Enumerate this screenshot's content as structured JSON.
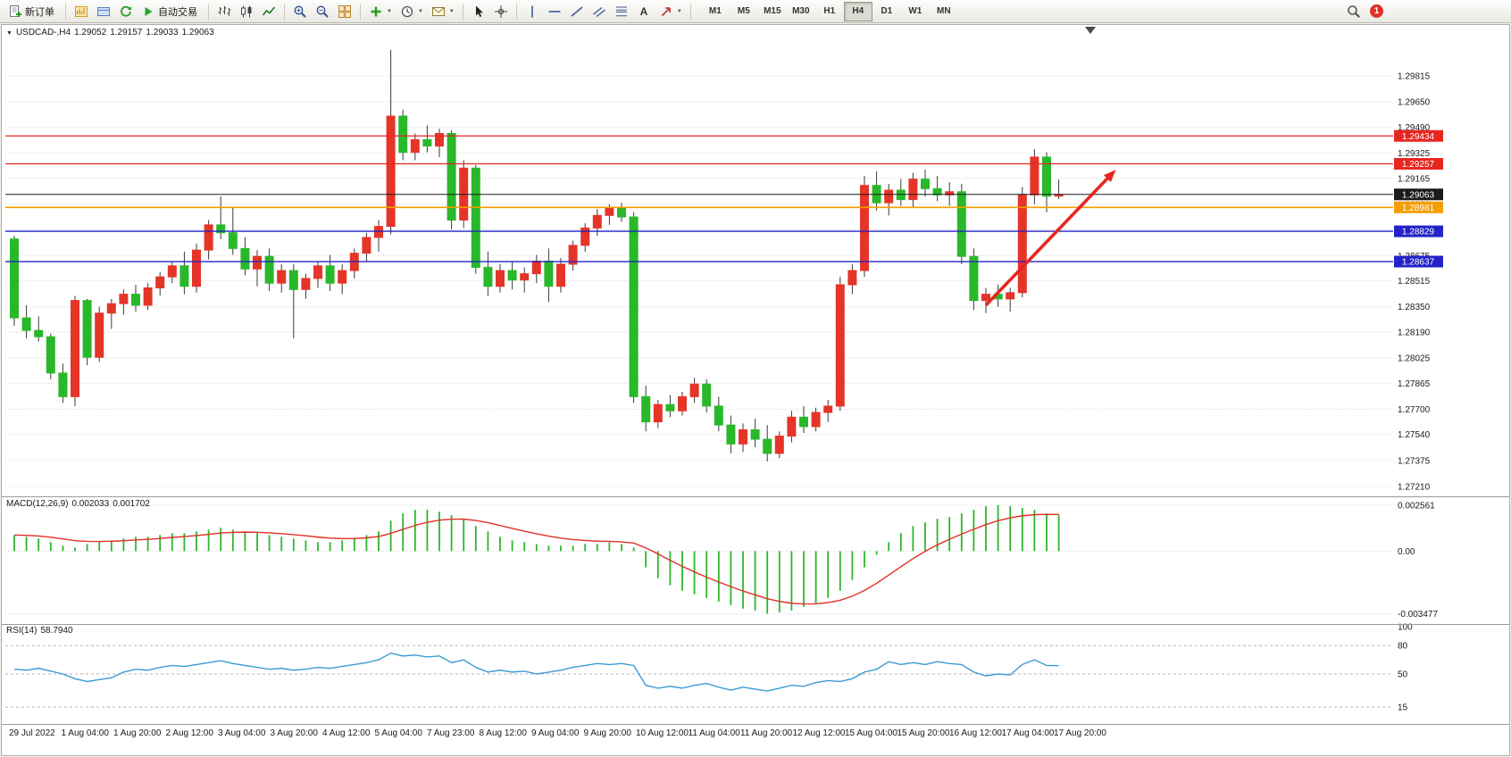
{
  "toolbar": {
    "new_order_label": "新订单",
    "auto_trading_label": "自动交易",
    "timeframes": [
      "M1",
      "M5",
      "M15",
      "M30",
      "H1",
      "H4",
      "D1",
      "W1",
      "MN"
    ],
    "active_timeframe": "H4",
    "notification_count": "1",
    "icons": [
      "new-order-icon",
      "new-chart-icon",
      "profiles-icon",
      "refresh-icon",
      "auto-trading-icon",
      "bar-chart-icon",
      "candlestick-icon",
      "line-chart-icon",
      "zoom-in-icon",
      "zoom-out-icon",
      "tile-windows-icon",
      "indicators-add-icon",
      "periods-clock-icon",
      "templates-mail-icon",
      "cursor-icon",
      "crosshair-icon",
      "vertical-line-icon",
      "horizontal-line-icon",
      "trendline-icon",
      "channel-icon",
      "fibonacci-icon",
      "text-icon",
      "arrows-icon",
      "search-icon"
    ]
  },
  "chart_header": {
    "symbol_period": "USDCAD-,H4",
    "open": "1.29052",
    "high": "1.29157",
    "low": "1.29033",
    "close": "1.29063"
  },
  "chart_data": {
    "type": "candlestick",
    "symbol": "USDCAD",
    "period": "H4",
    "price_axis_labels": [
      "1.29815",
      "1.29650",
      "1.29490",
      "1.29325",
      "1.29165",
      "1.29000",
      "1.28840",
      "1.28675",
      "1.28515",
      "1.28350",
      "1.28190",
      "1.28025",
      "1.27865",
      "1.27700",
      "1.27540",
      "1.27375",
      "1.27210"
    ],
    "time_labels": [
      "29 Jul 2022",
      "1 Aug 04:00",
      "1 Aug 20:00",
      "2 Aug 12:00",
      "3 Aug 04:00",
      "3 Aug 20:00",
      "4 Aug 12:00",
      "5 Aug 04:00",
      "7 Aug 23:00",
      "8 Aug 12:00",
      "9 Aug 04:00",
      "9 Aug 20:00",
      "10 Aug 12:00",
      "11 Aug 04:00",
      "11 Aug 20:00",
      "12 Aug 12:00",
      "15 Aug 04:00",
      "15 Aug 20:00",
      "16 Aug 12:00",
      "17 Aug 04:00",
      "17 Aug 20:00"
    ],
    "ohlc": [
      [
        1.2878,
        1.288,
        1.2823,
        1.2828
      ],
      [
        1.2828,
        1.2836,
        1.2815,
        1.282
      ],
      [
        1.282,
        1.2829,
        1.2813,
        1.2816
      ],
      [
        1.2816,
        1.2818,
        1.2789,
        1.2793
      ],
      [
        1.2793,
        1.2799,
        1.2774,
        1.2778
      ],
      [
        1.2778,
        1.2842,
        1.2772,
        1.2839
      ],
      [
        1.2839,
        1.284,
        1.2798,
        1.2803
      ],
      [
        1.2803,
        1.2835,
        1.28,
        1.2831
      ],
      [
        1.2831,
        1.284,
        1.2821,
        1.2837
      ],
      [
        1.2837,
        1.2846,
        1.283,
        1.2843
      ],
      [
        1.2843,
        1.2849,
        1.2832,
        1.2836
      ],
      [
        1.2836,
        1.285,
        1.2833,
        1.2847
      ],
      [
        1.2847,
        1.2857,
        1.2842,
        1.2854
      ],
      [
        1.2854,
        1.2864,
        1.285,
        1.2861
      ],
      [
        1.2861,
        1.287,
        1.2843,
        1.2848
      ],
      [
        1.2848,
        1.2875,
        1.2844,
        1.2871
      ],
      [
        1.2871,
        1.289,
        1.2865,
        1.2887
      ],
      [
        1.2887,
        1.2905,
        1.2878,
        1.2882
      ],
      [
        1.2882,
        1.2898,
        1.2868,
        1.2872
      ],
      [
        1.2872,
        1.2879,
        1.2855,
        1.2859
      ],
      [
        1.2859,
        1.2871,
        1.2848,
        1.2867
      ],
      [
        1.2867,
        1.2872,
        1.2845,
        1.285
      ],
      [
        1.285,
        1.2862,
        1.2844,
        1.2858
      ],
      [
        1.2858,
        1.2862,
        1.2815,
        1.2846
      ],
      [
        1.2846,
        1.2856,
        1.284,
        1.2853
      ],
      [
        1.2853,
        1.2864,
        1.2847,
        1.2861
      ],
      [
        1.2861,
        1.2868,
        1.2845,
        1.285
      ],
      [
        1.285,
        1.2862,
        1.2843,
        1.2858
      ],
      [
        1.2858,
        1.2872,
        1.2853,
        1.2869
      ],
      [
        1.2869,
        1.2882,
        1.2864,
        1.2879
      ],
      [
        1.2879,
        1.289,
        1.287,
        1.2886
      ],
      [
        1.2886,
        1.2998,
        1.2881,
        1.2956
      ],
      [
        1.2956,
        1.296,
        1.2928,
        1.2933
      ],
      [
        1.2933,
        1.2945,
        1.2928,
        1.2941
      ],
      [
        1.2941,
        1.295,
        1.2933,
        1.2937
      ],
      [
        1.2937,
        1.2948,
        1.293,
        1.2945
      ],
      [
        1.2945,
        1.2947,
        1.2884,
        1.289
      ],
      [
        1.289,
        1.2928,
        1.2885,
        1.2923
      ],
      [
        1.2923,
        1.2925,
        1.2856,
        1.286
      ],
      [
        1.286,
        1.287,
        1.2842,
        1.2848
      ],
      [
        1.2848,
        1.2862,
        1.2844,
        1.2858
      ],
      [
        1.2858,
        1.2864,
        1.2846,
        1.2852
      ],
      [
        1.2852,
        1.286,
        1.2844,
        1.2856
      ],
      [
        1.2856,
        1.2868,
        1.285,
        1.2864
      ],
      [
        1.2864,
        1.2872,
        1.2838,
        1.2848
      ],
      [
        1.2848,
        1.2866,
        1.2844,
        1.2862
      ],
      [
        1.2862,
        1.2877,
        1.2858,
        1.2874
      ],
      [
        1.2874,
        1.2888,
        1.287,
        1.2885
      ],
      [
        1.2885,
        1.2897,
        1.288,
        1.2893
      ],
      [
        1.2893,
        1.29,
        1.2887,
        1.2898
      ],
      [
        1.2898,
        1.2901,
        1.2889,
        1.2892
      ],
      [
        1.2892,
        1.2895,
        1.2774,
        1.2778
      ],
      [
        1.2778,
        1.2785,
        1.2756,
        1.2762
      ],
      [
        1.2762,
        1.2776,
        1.2758,
        1.2773
      ],
      [
        1.2773,
        1.2779,
        1.2765,
        1.2769
      ],
      [
        1.2769,
        1.2781,
        1.2766,
        1.2778
      ],
      [
        1.2778,
        1.279,
        1.2774,
        1.2786
      ],
      [
        1.2786,
        1.2789,
        1.2768,
        1.2772
      ],
      [
        1.2772,
        1.2778,
        1.2756,
        1.276
      ],
      [
        1.276,
        1.2766,
        1.2742,
        1.2748
      ],
      [
        1.2748,
        1.2761,
        1.2743,
        1.2757
      ],
      [
        1.2757,
        1.2764,
        1.2746,
        1.2751
      ],
      [
        1.2751,
        1.276,
        1.2737,
        1.2742
      ],
      [
        1.2742,
        1.2756,
        1.2739,
        1.2753
      ],
      [
        1.2753,
        1.2769,
        1.2749,
        1.2765
      ],
      [
        1.2765,
        1.2772,
        1.2755,
        1.2759
      ],
      [
        1.2759,
        1.2771,
        1.2756,
        1.2768
      ],
      [
        1.2768,
        1.2776,
        1.2762,
        1.2772
      ],
      [
        1.2772,
        1.2854,
        1.2769,
        1.2849
      ],
      [
        1.2849,
        1.2862,
        1.2843,
        1.2858
      ],
      [
        1.2858,
        1.2918,
        1.2854,
        1.2912
      ],
      [
        1.2912,
        1.2921,
        1.2896,
        1.2901
      ],
      [
        1.2901,
        1.2913,
        1.2893,
        1.2909
      ],
      [
        1.2909,
        1.2916,
        1.2899,
        1.2903
      ],
      [
        1.2903,
        1.292,
        1.2898,
        1.2916
      ],
      [
        1.2916,
        1.2922,
        1.2905,
        1.291
      ],
      [
        1.291,
        1.2918,
        1.2902,
        1.2906
      ],
      [
        1.2906,
        1.2914,
        1.2899,
        1.2908
      ],
      [
        1.2908,
        1.2913,
        1.2862,
        1.2867
      ],
      [
        1.2867,
        1.2872,
        1.2833,
        1.2839
      ],
      [
        1.2839,
        1.2847,
        1.2831,
        1.2843
      ],
      [
        1.2843,
        1.2849,
        1.2835,
        1.284
      ],
      [
        1.284,
        1.2847,
        1.2832,
        1.2844
      ],
      [
        1.2844,
        1.2911,
        1.2841,
        1.2906
      ],
      [
        1.2906,
        1.2935,
        1.29,
        1.293
      ],
      [
        1.293,
        1.2933,
        1.2895,
        1.29052
      ],
      [
        1.29052,
        1.29157,
        1.29033,
        1.29063
      ]
    ],
    "hlines": [
      {
        "price": 1.29434,
        "color": "#e8261f",
        "width": 1.3,
        "label": "1.29434"
      },
      {
        "price": 1.29257,
        "color": "#e8261f",
        "width": 1.3,
        "label": "1.29257"
      },
      {
        "price": 1.29063,
        "color": "#1a1a1a",
        "width": 1.0,
        "label": "1.29063"
      },
      {
        "price": 1.28981,
        "color": "#f59d00",
        "width": 1.6,
        "label": "1.28981"
      },
      {
        "price": 1.28829,
        "color": "#2323c8",
        "width": 1.4,
        "label": "1.28829"
      },
      {
        "price": 1.28637,
        "color": "#2323c8",
        "width": 1.4,
        "label": "1.28637"
      }
    ],
    "arrow": {
      "from_bar": 80,
      "from_price": 1.2836,
      "to_bar": 90.7,
      "to_price": 1.2922,
      "color": "#e8261f"
    },
    "indicators": {
      "macd": {
        "label": "MACD(12,26,9)",
        "value_main": "0.002033",
        "value_signal": "0.001702",
        "axis_labels": [
          "0.002561",
          "0.00",
          "-0.003477"
        ],
        "values": [
          0.0009,
          0.0008,
          0.0007,
          0.0005,
          0.0003,
          0.0002,
          0.0004,
          0.0005,
          0.0006,
          0.0007,
          0.0008,
          0.0008,
          0.0009,
          0.001,
          0.001,
          0.0011,
          0.0012,
          0.0013,
          0.0012,
          0.0011,
          0.001,
          0.0009,
          0.0008,
          0.0007,
          0.0006,
          0.0005,
          0.0005,
          0.0006,
          0.0007,
          0.0009,
          0.0011,
          0.0017,
          0.0021,
          0.0023,
          0.0023,
          0.0022,
          0.002,
          0.0018,
          0.0014,
          0.0011,
          0.0008,
          0.0006,
          0.0005,
          0.0004,
          0.0003,
          0.0003,
          0.0003,
          0.0004,
          0.0004,
          0.0005,
          0.0004,
          0.0002,
          -0.0009,
          -0.0015,
          -0.0019,
          -0.0022,
          -0.0024,
          -0.0026,
          -0.0028,
          -0.003,
          -0.0032,
          -0.0033,
          -0.003477,
          -0.0034,
          -0.0033,
          -0.0031,
          -0.0029,
          -0.0026,
          -0.0022,
          -0.0016,
          -0.0009,
          -0.0002,
          0.0005,
          0.001,
          0.0014,
          0.0016,
          0.0018,
          0.0019,
          0.0021,
          0.0023,
          0.0025,
          0.002561,
          0.0025,
          0.0024,
          0.0023,
          0.0021,
          0.002033
        ]
      },
      "rsi": {
        "label": "RSI(14)",
        "value": "58.7940",
        "axis_labels": [
          "100",
          "80",
          "50",
          "15"
        ],
        "levels": [
          80,
          50,
          15
        ],
        "values": [
          55,
          54,
          56,
          53,
          50,
          45,
          42,
          44,
          46,
          52,
          55,
          54,
          57,
          59,
          58,
          60,
          62,
          64,
          61,
          59,
          57,
          55,
          56,
          54,
          55,
          57,
          56,
          58,
          60,
          62,
          65,
          72,
          69,
          70,
          68,
          69,
          62,
          65,
          57,
          52,
          54,
          52,
          53,
          50,
          52,
          54,
          57,
          59,
          61,
          60,
          61,
          59,
          38,
          35,
          37,
          35,
          38,
          40,
          36,
          33,
          36,
          34,
          32,
          35,
          38,
          37,
          41,
          43,
          42,
          45,
          52,
          55,
          63,
          60,
          62,
          60,
          63,
          61,
          60,
          52,
          48,
          50,
          49,
          60,
          65,
          59,
          58.79
        ]
      }
    },
    "colors": {
      "up": "#e53528",
      "down": "#29b829",
      "wick": "#3a3a3a",
      "grid": "#d6d6d6",
      "separator": "#9a9a9a",
      "axis_text": "#1a1a1a",
      "macd_hist": "#2db52d",
      "macd_signal": "#e03028",
      "rsi_line": "#3b9bd5",
      "frame": "#adadad"
    }
  }
}
